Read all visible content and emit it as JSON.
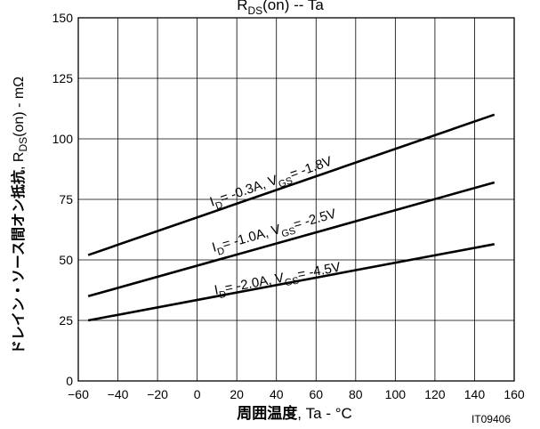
{
  "chart_data": {
    "type": "line",
    "title": {
      "main": "R",
      "sub": "DS",
      "rest": "(on)  --  Ta"
    },
    "xlabel": {
      "bold": "周囲温度",
      "rest": ", Ta  -  °C"
    },
    "ylabel": {
      "bold": "ドレイン・ソース間オン抵抗",
      "pre": ",  R",
      "sub": "DS",
      "rest": "(on)  -  mΩ"
    },
    "figure_code": "IT09406",
    "xlim": [
      -60,
      160
    ],
    "ylim": [
      0,
      150
    ],
    "x_ticks": [
      "−60",
      "−40",
      "−20",
      "0",
      "20",
      "40",
      "60",
      "80",
      "100",
      "120",
      "140",
      "160"
    ],
    "y_ticks": [
      "0",
      "25",
      "50",
      "75",
      "100",
      "125",
      "150"
    ],
    "grid": true,
    "series": [
      {
        "label": {
          "i": "I",
          "isub": "D",
          "imid": "= -0.3A, V",
          "vsub": "GS",
          "vend": "= -1.8V"
        },
        "x": [
          -55,
          150
        ],
        "y": [
          52,
          110
        ]
      },
      {
        "label": {
          "i": "I",
          "isub": "D",
          "imid": "= -1.0A, V",
          "vsub": "GS",
          "vend": "= -2.5V"
        },
        "x": [
          -55,
          150
        ],
        "y": [
          35,
          82
        ]
      },
      {
        "label": {
          "i": "I",
          "isub": "D",
          "imid": "= -2.0A, V",
          "vsub": "GS",
          "vend": "= -4.5V"
        },
        "x": [
          -55,
          150
        ],
        "y": [
          25,
          56.5
        ]
      }
    ]
  }
}
